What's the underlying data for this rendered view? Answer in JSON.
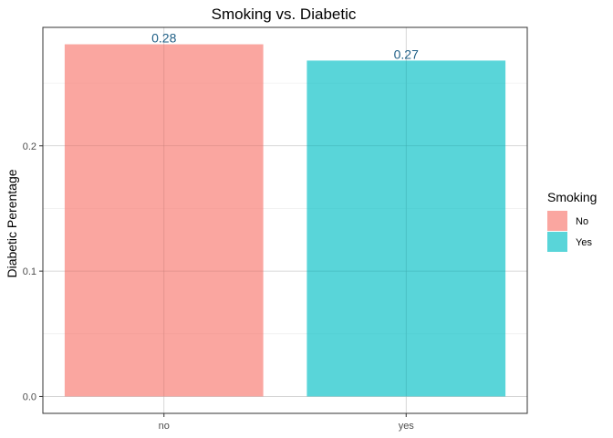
{
  "chart_data": {
    "type": "bar",
    "title": "Smoking vs. Diabetic",
    "xlabel": "",
    "ylabel": "Diabetic Perentage",
    "categories": [
      "no",
      "yes"
    ],
    "values": [
      0.281,
      0.268
    ],
    "data_labels": [
      "0.28",
      "0.27"
    ],
    "bar_colors": [
      "#F8766D",
      "#00BFC4"
    ],
    "ylim": [
      -0.0135,
      0.2945
    ],
    "yticks": [
      0.0,
      0.1,
      0.2
    ],
    "ytick_labels": [
      "0.0",
      "0.1",
      "0.2"
    ],
    "grid": true,
    "legend": {
      "title": "Smoking",
      "position": "right",
      "entries": [
        {
          "label": "No",
          "color": "#F8766D"
        },
        {
          "label": "Yes",
          "color": "#00BFC4"
        }
      ]
    }
  }
}
